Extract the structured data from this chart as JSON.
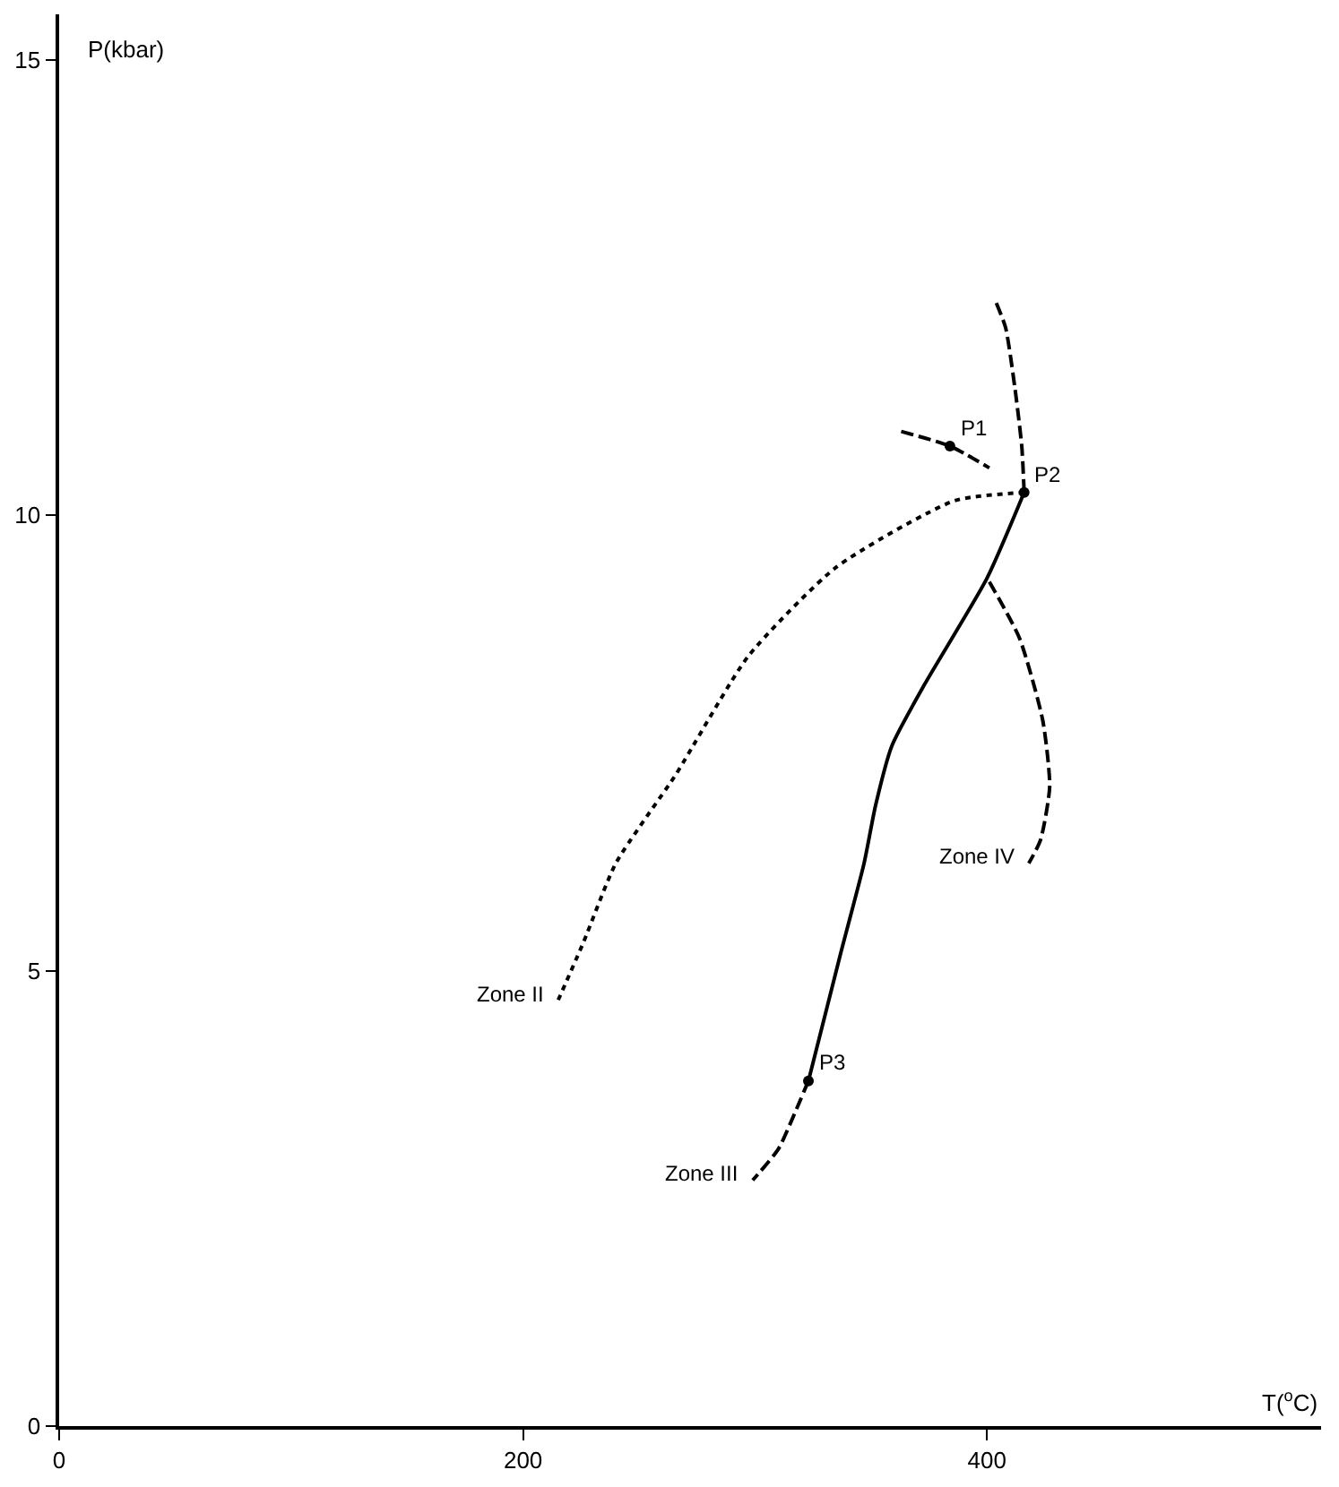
{
  "chart_data": {
    "type": "line",
    "xlabel": "T($^{o}$C)",
    "ylabel": "P(kbar)",
    "xlim": [
      0,
      544
    ],
    "ylim": [
      0,
      15.5
    ],
    "xticks": [
      0,
      200,
      400
    ],
    "yticks": [
      0,
      5,
      10,
      15
    ],
    "series": [
      {
        "color": "#000000",
        "line_style": "dashed",
        "x": [
          404,
          408,
          412,
          415,
          416
        ],
        "values": [
          12.33,
          12.06,
          11.4,
          10.75,
          10.25
        ]
      },
      {
        "color": "#000000",
        "line_style": "dashed",
        "x": [
          363,
          384,
          401
        ],
        "values": [
          10.92,
          10.76,
          10.52
        ]
      },
      {
        "color": "#000000",
        "line_style": "solid",
        "x": [
          416,
          400,
          373,
          359,
          352,
          347,
          337,
          323
        ],
        "values": [
          10.25,
          9.31,
          8.14,
          7.47,
          6.82,
          6.18,
          5.2,
          3.79
        ]
      },
      {
        "color": "#000000",
        "line_style": "dashed",
        "x": [
          323,
          317,
          310,
          299
        ],
        "values": [
          3.79,
          3.43,
          3.04,
          2.7
        ]
      },
      {
        "color": "#000000",
        "line_style": "dotted",
        "x": [
          416,
          386,
          335,
          297,
          266,
          240,
          226,
          215
        ],
        "values": [
          10.25,
          10.16,
          9.43,
          8.45,
          7.16,
          6.18,
          5.31,
          4.67
        ]
      },
      {
        "color": "#000000",
        "line_style": "dashed",
        "x": [
          401,
          414,
          424,
          427,
          423,
          418
        ],
        "values": [
          9.27,
          8.65,
          7.75,
          7.02,
          6.43,
          6.18
        ]
      },
      {
        "type": "scatter",
        "marker": "circle",
        "color": "#000000",
        "x": [
          384,
          416,
          323
        ],
        "values": [
          10.76,
          10.25,
          3.79
        ]
      }
    ],
    "annotations": [
      {
        "text": "P1",
        "x": 384,
        "y": 10.76
      },
      {
        "text": "P2",
        "x": 416,
        "y": 10.25
      },
      {
        "text": "P3",
        "x": 323,
        "y": 3.79
      },
      {
        "text": "Zone IV",
        "x": 418,
        "y": 6.18
      },
      {
        "text": "Zone II",
        "x": 215,
        "y": 4.67
      },
      {
        "text": "Zone III",
        "x": 299,
        "y": 2.7
      }
    ]
  }
}
